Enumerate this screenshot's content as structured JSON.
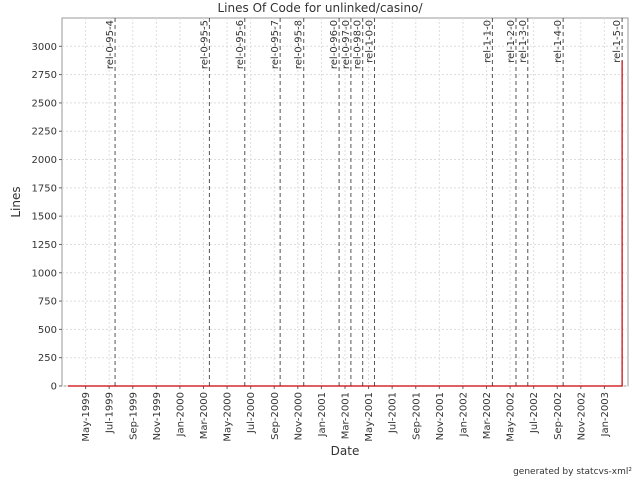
{
  "chart_data": {
    "type": "line",
    "title": "Lines Of Code for unlinked/casino/",
    "x_label": "Date",
    "y_label": "Lines",
    "footer": "generated by statcvs-xml²",
    "x": [
      "1999-03",
      "2003-02",
      "2003-02"
    ],
    "series": [
      {
        "name": "Lines",
        "color": "#cc0000",
        "values": [
          0,
          0,
          2875
        ]
      }
    ],
    "xlim": [
      "1999-03",
      "2003-03"
    ],
    "xticks": [
      {
        "value": "1999-05",
        "label": "May-1999"
      },
      {
        "value": "1999-07",
        "label": "Jul-1999"
      },
      {
        "value": "1999-09",
        "label": "Sep-1999"
      },
      {
        "value": "1999-11",
        "label": "Nov-1999"
      },
      {
        "value": "2000-01",
        "label": "Jan-2000"
      },
      {
        "value": "2000-03",
        "label": "Mar-2000"
      },
      {
        "value": "2000-05",
        "label": "May-2000"
      },
      {
        "value": "2000-07",
        "label": "Jul-2000"
      },
      {
        "value": "2000-09",
        "label": "Sep-2000"
      },
      {
        "value": "2000-11",
        "label": "Nov-2000"
      },
      {
        "value": "2001-01",
        "label": "Jan-2001"
      },
      {
        "value": "2001-03",
        "label": "Mar-2001"
      },
      {
        "value": "2001-05",
        "label": "May-2001"
      },
      {
        "value": "2001-07",
        "label": "Jul-2001"
      },
      {
        "value": "2001-09",
        "label": "Sep-2001"
      },
      {
        "value": "2001-11",
        "label": "Nov-2001"
      },
      {
        "value": "2002-01",
        "label": "Jan-2002"
      },
      {
        "value": "2002-03",
        "label": "Mar-2002"
      },
      {
        "value": "2002-05",
        "label": "May-2002"
      },
      {
        "value": "2002-07",
        "label": "Jul-2002"
      },
      {
        "value": "2002-09",
        "label": "Sep-2002"
      },
      {
        "value": "2002-11",
        "label": "Nov-2002"
      },
      {
        "value": "2003-01",
        "label": "Jan-2003"
      }
    ],
    "ylim": [
      0,
      3250
    ],
    "yticks": [
      0,
      250,
      500,
      750,
      1000,
      1250,
      1500,
      1750,
      2000,
      2250,
      2500,
      2750,
      3000
    ],
    "grid": true,
    "releases": [
      {
        "label": "rel-0-95-4",
        "x": "1999-07"
      },
      {
        "label": "rel-0-95-5",
        "x": "2000-03"
      },
      {
        "label": "rel-0-95-6",
        "x": "2000-06"
      },
      {
        "label": "rel-0-95-7",
        "x": "2000-09"
      },
      {
        "label": "rel-0-95-8",
        "x": "2000-11"
      },
      {
        "label": "rel-0-96-0",
        "x": "2001-02"
      },
      {
        "label": "rel-0-97-0",
        "x": "2001-03"
      },
      {
        "label": "rel-0-98-0",
        "x": "2001-04"
      },
      {
        "label": "rel-1-0-0",
        "x": "2001-05"
      },
      {
        "label": "rel-1-1-0",
        "x": "2002-03"
      },
      {
        "label": "rel-1-2-0",
        "x": "2002-05"
      },
      {
        "label": "rel-1-3-0",
        "x": "2002-06"
      },
      {
        "label": "rel-1-4-0",
        "x": "2002-09"
      },
      {
        "label": "rel-1-5-0",
        "x": "2003-02"
      }
    ]
  }
}
